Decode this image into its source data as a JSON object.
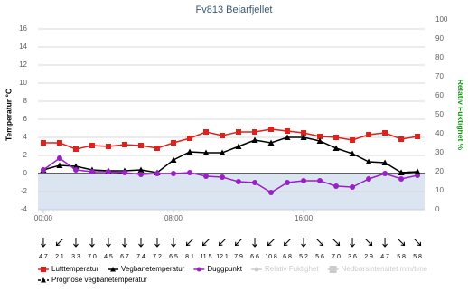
{
  "chart_data": {
    "type": "line",
    "title": "Fv813 Beiarfjellet",
    "y_label": "Temperatur °C",
    "y2_label": "Relativ Fuktighet %",
    "x": [
      0,
      1,
      2,
      3,
      4,
      5,
      6,
      7,
      8,
      9,
      10,
      11,
      12,
      13,
      14,
      15,
      16,
      17,
      18,
      19,
      20,
      21,
      22,
      23
    ],
    "xlim": [
      -0.33,
      23.44
    ],
    "xticks": [
      {
        "value": 0,
        "label": "00:00"
      },
      {
        "value": 8,
        "label": "08:00"
      },
      {
        "value": 16,
        "label": "16:00"
      }
    ],
    "ylim": [
      -4,
      17
    ],
    "yticks": [
      -4,
      -2,
      0,
      2,
      4,
      6,
      8,
      10,
      12,
      14,
      16
    ],
    "y2lim": [
      0,
      100
    ],
    "y2ticks": [
      0,
      10,
      20,
      30,
      40,
      50,
      60,
      70,
      80,
      90,
      100
    ],
    "grid": true,
    "series": [
      {
        "name": "Lufttemperatur",
        "color": "#e0201b",
        "marker": "square",
        "values": [
          3.4,
          3.4,
          2.7,
          3.1,
          3.0,
          3.2,
          3.1,
          2.8,
          3.4,
          3.9,
          4.6,
          4.2,
          4.6,
          4.6,
          4.9,
          4.7,
          4.5,
          4.1,
          4.0,
          3.7,
          4.3,
          4.5,
          3.8,
          4.1
        ]
      },
      {
        "name": "Vegbanetemperatur",
        "color": "#000000",
        "marker": "triangle",
        "values": [
          0.4,
          0.9,
          0.8,
          0.4,
          0.3,
          0.3,
          0.4,
          0.1,
          1.5,
          2.4,
          2.3,
          2.3,
          3.0,
          3.7,
          3.4,
          4.0,
          4.0,
          3.6,
          2.8,
          2.2,
          1.3,
          1.2,
          0.1,
          0.2
        ]
      },
      {
        "name": "Duggpunkt",
        "color": "#9a1fc9",
        "marker": "circle",
        "values": [
          0.4,
          1.7,
          0.4,
          0.2,
          0.2,
          0.1,
          -0.1,
          0,
          0,
          0.1,
          -0.3,
          -0.4,
          -0.9,
          -1.0,
          -2.1,
          -1.0,
          -0.8,
          -0.8,
          -1.4,
          -1.5,
          -0.6,
          0,
          -0.6,
          -0.2
        ]
      },
      {
        "name": "Relativ Fuktighet",
        "color": "#cccccc",
        "marker": "circle",
        "axis": "y2",
        "visible": false
      },
      {
        "name": "Nedbørsintensitet mm/time",
        "color": "#cccccc",
        "marker": "box",
        "visible": false
      },
      {
        "name": "Prognose vegbanetemperatur",
        "color": "#000000",
        "marker": "triangle",
        "dashed": true,
        "values": [
          null,
          null,
          null,
          null,
          null,
          null,
          null,
          null,
          null,
          null,
          null,
          null,
          null,
          null,
          null,
          null,
          null,
          null,
          null,
          null,
          null,
          null,
          0.1,
          0.2
        ]
      }
    ],
    "wind": {
      "values": [
        4.7,
        2.1,
        3.3,
        7.0,
        4.5,
        6.7,
        7.4,
        7.2,
        6.5,
        8.1,
        11.5,
        12.1,
        7.9,
        6.6,
        10.8,
        6.8,
        5.2,
        5.6,
        7.0,
        3.6,
        2.9,
        4.7,
        5.8,
        5.8
      ],
      "value_labels": [
        "4.7",
        "2.1",
        "3.3",
        "7.0",
        "4.5",
        "6.7",
        "7.4",
        "7.2",
        "6.5",
        "8.1",
        "11.5",
        "12.1",
        "7.9",
        "6.6",
        "10.8",
        "6.8",
        "5.2",
        "5.6",
        "7.0",
        "3.6",
        "2.9",
        "4.7",
        "5.8",
        "5.8"
      ],
      "direction": [
        0,
        45,
        0,
        0,
        0,
        0,
        0,
        0,
        0,
        45,
        45,
        45,
        45,
        0,
        45,
        45,
        0,
        315,
        315,
        0,
        315,
        0,
        315,
        315
      ]
    }
  }
}
